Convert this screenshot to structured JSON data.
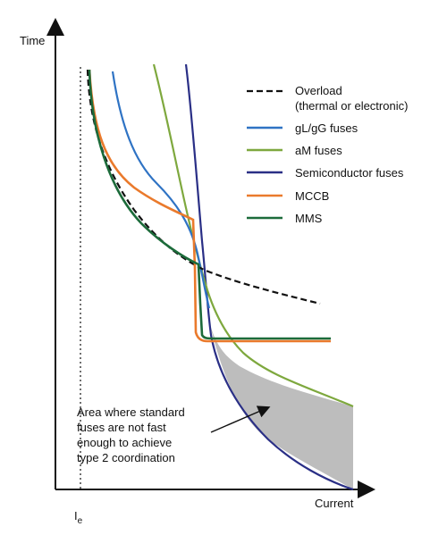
{
  "chart_data": {
    "type": "line",
    "title": "",
    "xlabel": "Current",
    "ylabel": "Time",
    "grid": false,
    "legend_placement": "top-right",
    "x_marker": {
      "label": "I",
      "subscript": "e",
      "style": "dotted"
    },
    "series": [
      {
        "name": "Overload\n(thermal or electronic)",
        "legend_lines": [
          "Overload",
          "(thermal or electronic)"
        ],
        "color": "#111111",
        "dash": "dashed"
      },
      {
        "name": "gL/gG fuses",
        "color": "#2f73c4",
        "dash": "solid"
      },
      {
        "name": "aM fuses",
        "color": "#7ea83e",
        "dash": "solid"
      },
      {
        "name": "Semiconductor fuses",
        "color": "#2a2f86",
        "dash": "solid"
      },
      {
        "name": "MCCB",
        "color": "#ea7a2c",
        "dash": "solid"
      },
      {
        "name": "MMS",
        "color": "#1c6b3a",
        "dash": "solid"
      }
    ],
    "shaded_region": {
      "color": "#bdbdbd",
      "annotation_lines": [
        "Area where standard",
        "fuses are not fast",
        "enough to achieve",
        "type 2 coordination"
      ]
    }
  }
}
